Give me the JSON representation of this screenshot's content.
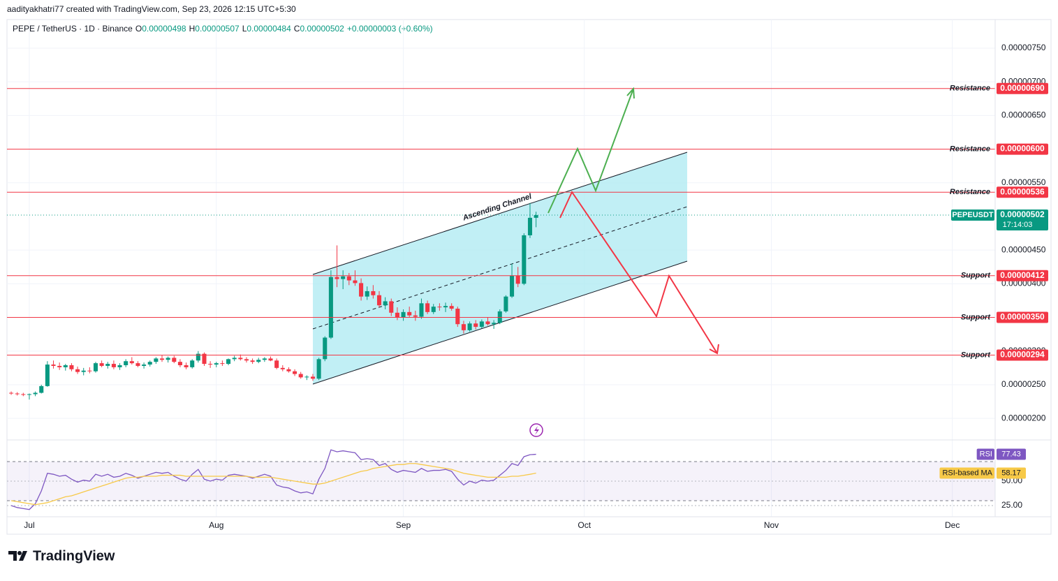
{
  "header": {
    "credit": "aadityakhatri77 created with TradingView.com, Sep 23, 2026 12:15 UTC+5:30",
    "symbol": "PEPE / TetherUS · 1D · Binance",
    "quote": [
      {
        "key": "O",
        "value": "0.00000498"
      },
      {
        "key": "H",
        "value": "0.00000507"
      },
      {
        "key": "L",
        "value": "0.00000484"
      },
      {
        "key": "C",
        "value": "0.00000502"
      }
    ],
    "change": "+0.00000003 (+0.60%)"
  },
  "footer": {
    "brand": "TradingView"
  },
  "chart_data": [
    {
      "type": "candlestick",
      "up_color": "#089981",
      "down_color": "#f23645",
      "xlim": [
        -0.7,
        163.1
      ],
      "xticks": [
        {
          "value": 3,
          "label": "Jul"
        },
        {
          "value": 34,
          "label": "Aug"
        },
        {
          "value": 65,
          "label": "Sep"
        },
        {
          "value": 95,
          "label": "Oct"
        },
        {
          "value": 126,
          "label": "Nov"
        },
        {
          "value": 156,
          "label": "Dec"
        }
      ],
      "ylim": [
        1.68e-06,
        7.925e-06
      ],
      "yticks": [
        {
          "value": 7.5e-06,
          "label": "0.00000750"
        },
        {
          "value": 7e-06,
          "label": "0.00000700"
        },
        {
          "value": 6.5e-06,
          "label": "0.00000650"
        },
        {
          "value": 5.5e-06,
          "label": "0.00000550"
        },
        {
          "value": 4.5e-06,
          "label": "0.00000450"
        },
        {
          "value": 4e-06,
          "label": "0.00000400"
        },
        {
          "value": 3e-06,
          "label": "0.00000300"
        },
        {
          "value": 2.5e-06,
          "label": "0.00000250"
        },
        {
          "value": 2e-06,
          "label": "0.00000200"
        }
      ],
      "grid": true,
      "open": [
        2.38e-06,
        2.37e-06,
        2.36e-06,
        2.35e-06,
        2.36e-06,
        2.38e-06,
        2.48e-06,
        2.8e-06,
        2.78e-06,
        2.76e-06,
        2.79e-06,
        2.73e-06,
        2.69e-06,
        2.71e-06,
        2.7e-06,
        2.82e-06,
        2.78e-06,
        2.81e-06,
        2.76e-06,
        2.79e-06,
        2.85e-06,
        2.82e-06,
        2.78e-06,
        2.8e-06,
        2.84e-06,
        2.89e-06,
        2.87e-06,
        2.9e-06,
        2.84e-06,
        2.79e-06,
        2.76e-06,
        2.86e-06,
        2.96e-06,
        2.81e-06,
        2.8e-06,
        2.82e-06,
        2.81e-06,
        2.88e-06,
        2.9e-06,
        2.88e-06,
        2.86e-06,
        2.84e-06,
        2.87e-06,
        2.89e-06,
        2.86e-06,
        2.75e-06,
        2.73e-06,
        2.7e-06,
        2.66e-06,
        2.61e-06,
        2.62e-06,
        2.59e-06,
        2.88e-06,
        3.2e-06,
        4.1e-06,
        4.07e-06,
        4.11e-06,
        4.05e-06,
        4.01e-06,
        3.81e-06,
        3.89e-06,
        3.83e-06,
        3.68e-06,
        3.74e-06,
        3.57e-06,
        3.5e-06,
        3.58e-06,
        3.53e-06,
        3.51e-06,
        3.71e-06,
        3.58e-06,
        3.66e-06,
        3.65e-06,
        3.67e-06,
        3.63e-06,
        3.4e-06,
        3.31e-06,
        3.41e-06,
        3.36e-06,
        3.44e-06,
        3.4e-06,
        3.42e-06,
        3.59e-06,
        3.81e-06,
        4.12e-06,
        4e-06,
        4.72e-06,
        4.98e-06
      ],
      "high": [
        2.4e-06,
        2.39e-06,
        2.38e-06,
        2.37e-06,
        2.4e-06,
        2.5e-06,
        2.85e-06,
        2.86e-06,
        2.83e-06,
        2.81e-06,
        2.82e-06,
        2.77e-06,
        2.75e-06,
        2.76e-06,
        2.84e-06,
        2.86e-06,
        2.84e-06,
        2.86e-06,
        2.82e-06,
        2.88e-06,
        2.91e-06,
        2.85e-06,
        2.83e-06,
        2.86e-06,
        2.91e-06,
        2.94e-06,
        2.92e-06,
        2.93e-06,
        2.88e-06,
        2.83e-06,
        2.88e-06,
        3e-06,
        2.98e-06,
        2.85e-06,
        2.84e-06,
        2.86e-06,
        2.89e-06,
        2.93e-06,
        2.95e-06,
        2.91e-06,
        2.89e-06,
        2.9e-06,
        2.91e-06,
        2.92e-06,
        2.89e-06,
        2.79e-06,
        2.76e-06,
        2.73e-06,
        2.69e-06,
        2.64e-06,
        2.66e-06,
        2.9e-06,
        3.22e-06,
        4.2e-06,
        4.57e-06,
        4.2e-06,
        4.16e-06,
        4.2e-06,
        4.08e-06,
        3.96e-06,
        3.98e-06,
        3.89e-06,
        3.8e-06,
        3.78e-06,
        3.65e-06,
        3.62e-06,
        3.66e-06,
        3.6e-06,
        3.78e-06,
        3.75e-06,
        3.7e-06,
        3.71e-06,
        3.72e-06,
        3.71e-06,
        3.66e-06,
        3.45e-06,
        3.44e-06,
        3.46e-06,
        3.47e-06,
        3.5e-06,
        3.46e-06,
        3.62e-06,
        3.83e-06,
        4.3e-06,
        4.25e-06,
        4.75e-06,
        5.2e-06,
        5.07e-06
      ],
      "low": [
        2.35e-06,
        2.34e-06,
        2.33e-06,
        2.28e-06,
        2.33e-06,
        2.37e-06,
        2.47e-06,
        2.74e-06,
        2.72e-06,
        2.71e-06,
        2.7e-06,
        2.66e-06,
        2.64e-06,
        2.67e-06,
        2.68e-06,
        2.76e-06,
        2.74e-06,
        2.73e-06,
        2.72e-06,
        2.76e-06,
        2.8e-06,
        2.76e-06,
        2.74e-06,
        2.77e-06,
        2.81e-06,
        2.84e-06,
        2.83e-06,
        2.82e-06,
        2.76e-06,
        2.73e-06,
        2.74e-06,
        2.83e-06,
        2.78e-06,
        2.75e-06,
        2.76e-06,
        2.78e-06,
        2.79e-06,
        2.85e-06,
        2.86e-06,
        2.83e-06,
        2.81e-06,
        2.82e-06,
        2.84e-06,
        2.85e-06,
        2.73e-06,
        2.7e-06,
        2.68e-06,
        2.63e-06,
        2.59e-06,
        2.57e-06,
        2.56e-06,
        2.57e-06,
        2.85e-06,
        3.18e-06,
        3.95e-06,
        3.92e-06,
        3.98e-06,
        3.97e-06,
        3.75e-06,
        3.76e-06,
        3.78e-06,
        3.65e-06,
        3.62e-06,
        3.52e-06,
        3.46e-06,
        3.45e-06,
        3.5e-06,
        3.45e-06,
        3.48e-06,
        3.55e-06,
        3.55e-06,
        3.6e-06,
        3.58e-06,
        3.6e-06,
        3.36e-06,
        3.26e-06,
        3.29e-06,
        3.32e-06,
        3.34e-06,
        3.38e-06,
        3.33e-06,
        3.4e-06,
        3.57e-06,
        3.79e-06,
        3.95e-06,
        3.98e-06,
        4.68e-06,
        4.84e-06
      ],
      "close": [
        2.37e-06,
        2.36e-06,
        2.35e-06,
        2.36e-06,
        2.38e-06,
        2.48e-06,
        2.8e-06,
        2.78e-06,
        2.76e-06,
        2.79e-06,
        2.73e-06,
        2.69e-06,
        2.71e-06,
        2.7e-06,
        2.82e-06,
        2.78e-06,
        2.81e-06,
        2.76e-06,
        2.79e-06,
        2.85e-06,
        2.82e-06,
        2.78e-06,
        2.8e-06,
        2.84e-06,
        2.89e-06,
        2.87e-06,
        2.9e-06,
        2.84e-06,
        2.79e-06,
        2.76e-06,
        2.86e-06,
        2.96e-06,
        2.81e-06,
        2.8e-06,
        2.82e-06,
        2.81e-06,
        2.88e-06,
        2.9e-06,
        2.88e-06,
        2.86e-06,
        2.84e-06,
        2.87e-06,
        2.89e-06,
        2.86e-06,
        2.75e-06,
        2.73e-06,
        2.7e-06,
        2.66e-06,
        2.61e-06,
        2.62e-06,
        2.59e-06,
        2.88e-06,
        3.2e-06,
        4.1e-06,
        4.07e-06,
        4.11e-06,
        4.05e-06,
        4.01e-06,
        3.81e-06,
        3.89e-06,
        3.83e-06,
        3.68e-06,
        3.74e-06,
        3.57e-06,
        3.5e-06,
        3.58e-06,
        3.53e-06,
        3.51e-06,
        3.71e-06,
        3.58e-06,
        3.66e-06,
        3.65e-06,
        3.67e-06,
        3.63e-06,
        3.4e-06,
        3.31e-06,
        3.41e-06,
        3.36e-06,
        3.44e-06,
        3.4e-06,
        3.42e-06,
        3.59e-06,
        3.81e-06,
        4.12e-06,
        4e-06,
        4.72e-06,
        4.98e-06,
        5.02e-06
      ],
      "levels": [
        {
          "name": "Resistance",
          "value": 6.9e-06,
          "value_label": "0.00000690"
        },
        {
          "name": "Resistance",
          "value": 6e-06,
          "value_label": "0.00000600"
        },
        {
          "name": "Resistance",
          "value": 5.36e-06,
          "value_label": "0.00000536"
        },
        {
          "name": "Support",
          "value": 4.12e-06,
          "value_label": "0.00000412"
        },
        {
          "name": "Support",
          "value": 3.5e-06,
          "value_label": "0.00000350"
        },
        {
          "name": "Support",
          "value": 2.94e-06,
          "value_label": "0.00000294"
        }
      ],
      "level_color": "#f23645",
      "current": {
        "symbol": "PEPEUSDT",
        "value": 5.02e-06,
        "value_label": "0.00000502",
        "countdown": "17:14:03",
        "color": "#089981"
      },
      "annotation": "Ascending Channel"
    },
    {
      "type": "line",
      "xlim": [
        -0.7,
        163.1
      ],
      "ylim": [
        13.6,
        92.1
      ],
      "yticks": [
        {
          "value": 50,
          "label": "50.00"
        },
        {
          "value": 25,
          "label": "25.00"
        }
      ],
      "bands": [
        70,
        30
      ],
      "series": [
        {
          "name": "RSI",
          "color": "#7e57c2",
          "values": [
            25,
            23,
            22,
            21,
            27,
            40,
            58,
            57,
            55,
            56,
            52,
            49,
            51,
            50,
            57,
            55,
            57,
            54,
            55,
            58,
            56,
            53,
            55,
            57,
            59,
            58,
            59,
            55,
            52,
            50,
            57,
            62,
            52,
            50,
            52,
            51,
            56,
            57,
            56,
            55,
            53,
            55,
            57,
            55,
            46,
            44,
            43,
            40,
            38,
            39,
            37,
            52,
            63,
            82,
            80,
            81,
            80,
            79,
            72,
            73,
            72,
            66,
            68,
            62,
            59,
            61,
            60,
            59,
            63,
            60,
            61,
            61,
            62,
            60,
            52,
            46,
            50,
            48,
            51,
            50,
            51,
            56,
            61,
            68,
            66,
            75,
            77,
            77.43
          ]
        },
        {
          "name": "RSI-based MA",
          "color": "#f7c948",
          "values": [
            30,
            29,
            28,
            27,
            26,
            27,
            28,
            30,
            32,
            34,
            35,
            37,
            39,
            41,
            43,
            45,
            47,
            49,
            51,
            53,
            54,
            54,
            55,
            55,
            55,
            56,
            56,
            56,
            56,
            55,
            55,
            55,
            55,
            55,
            55,
            55,
            55,
            55,
            55,
            55,
            54,
            54,
            54,
            54,
            53,
            52,
            51,
            50,
            49,
            48,
            47,
            47,
            48,
            50,
            52,
            54,
            56,
            58,
            60,
            61,
            63,
            64,
            65,
            66,
            67,
            67,
            68,
            68,
            67,
            66,
            65,
            64,
            63,
            62,
            60,
            58,
            57,
            56,
            55,
            54,
            54,
            54,
            54,
            55,
            55,
            56,
            57,
            58.17
          ]
        }
      ]
    }
  ]
}
